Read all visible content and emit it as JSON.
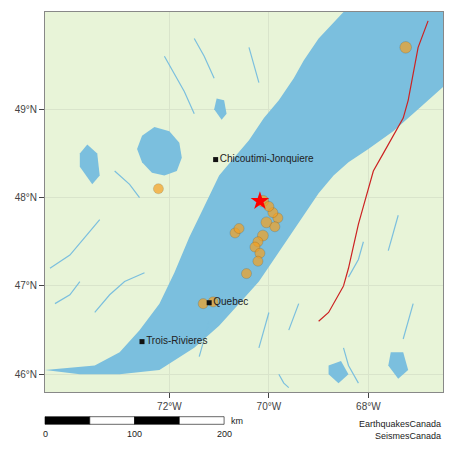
{
  "chart_data": {
    "type": "scatter",
    "xlim": [
      -74.5,
      -66.5
    ],
    "ylim": [
      45.8,
      50.1
    ],
    "xticks": [
      {
        "value": -72,
        "label": "72°W"
      },
      {
        "value": -70,
        "label": "70°W"
      },
      {
        "value": -68,
        "label": "68°W"
      }
    ],
    "yticks": [
      {
        "value": 46,
        "label": "46°N"
      },
      {
        "value": 47,
        "label": "47°N"
      },
      {
        "value": 48,
        "label": "48°N"
      },
      {
        "value": 49,
        "label": "49°N"
      }
    ],
    "grid": true,
    "background_color": "#e8f4d8",
    "series": [
      {
        "type": "area",
        "color": "#7bbfde",
        "paths": [
          [
            [
              -74.5,
              46.05
            ],
            [
              -73.8,
              46.0
            ],
            [
              -73.0,
              46.0
            ],
            [
              -72.2,
              46.05
            ],
            [
              -71.5,
              46.3
            ],
            [
              -71.0,
              46.55
            ],
            [
              -70.6,
              46.8
            ],
            [
              -70.2,
              47.05
            ],
            [
              -69.9,
              47.3
            ],
            [
              -69.6,
              47.55
            ],
            [
              -69.3,
              47.8
            ],
            [
              -69.0,
              48.05
            ],
            [
              -68.7,
              48.25
            ],
            [
              -68.4,
              48.4
            ],
            [
              -68.0,
              48.55
            ],
            [
              -67.5,
              48.75
            ],
            [
              -67.0,
              49.0
            ],
            [
              -66.5,
              49.25
            ],
            [
              -66.5,
              50.1
            ],
            [
              -67.0,
              50.1
            ],
            [
              -67.5,
              50.1
            ],
            [
              -68.0,
              50.1
            ],
            [
              -68.5,
              50.1
            ],
            [
              -69.0,
              49.8
            ],
            [
              -69.3,
              49.55
            ],
            [
              -69.5,
              49.35
            ],
            [
              -69.8,
              49.1
            ],
            [
              -70.1,
              48.9
            ],
            [
              -70.4,
              48.65
            ],
            [
              -70.7,
              48.45
            ],
            [
              -71.0,
              48.25
            ],
            [
              -71.3,
              47.9
            ],
            [
              -71.6,
              47.55
            ],
            [
              -71.9,
              47.15
            ],
            [
              -72.2,
              46.8
            ],
            [
              -72.6,
              46.5
            ],
            [
              -73.0,
              46.25
            ],
            [
              -73.5,
              46.1
            ],
            [
              -74.5,
              46.05
            ]
          ],
          [
            [
              -72.55,
              48.4
            ],
            [
              -72.35,
              48.28
            ],
            [
              -72.1,
              48.25
            ],
            [
              -71.85,
              48.3
            ],
            [
              -71.75,
              48.45
            ],
            [
              -71.8,
              48.62
            ],
            [
              -72.0,
              48.75
            ],
            [
              -72.3,
              48.8
            ],
            [
              -72.55,
              48.7
            ],
            [
              -72.65,
              48.55
            ],
            [
              -72.55,
              48.4
            ]
          ],
          [
            [
              -73.8,
              48.35
            ],
            [
              -73.55,
              48.15
            ],
            [
              -73.4,
              48.25
            ],
            [
              -73.45,
              48.5
            ],
            [
              -73.65,
              48.6
            ],
            [
              -73.8,
              48.5
            ]
          ],
          [
            [
              -71.1,
              49.0
            ],
            [
              -70.95,
              48.88
            ],
            [
              -70.85,
              48.95
            ],
            [
              -70.9,
              49.1
            ],
            [
              -71.05,
              49.12
            ],
            [
              -71.1,
              49.0
            ]
          ],
          [
            [
              -68.8,
              46.0
            ],
            [
              -68.6,
              45.9
            ],
            [
              -68.4,
              46.0
            ],
            [
              -68.55,
              46.15
            ],
            [
              -68.8,
              46.1
            ]
          ],
          [
            [
              -67.6,
              46.1
            ],
            [
              -67.4,
              45.95
            ],
            [
              -67.2,
              46.05
            ],
            [
              -67.3,
              46.25
            ],
            [
              -67.55,
              46.25
            ]
          ]
        ]
      },
      {
        "type": "line",
        "color": "#7bbfde",
        "paths": [
          [
            [
              -74.4,
              47.2
            ],
            [
              -74.0,
              47.35
            ],
            [
              -73.7,
              47.55
            ],
            [
              -73.4,
              47.75
            ]
          ],
          [
            [
              -74.3,
              46.8
            ],
            [
              -74.0,
              46.9
            ],
            [
              -73.8,
              47.05
            ]
          ],
          [
            [
              -73.5,
              46.7
            ],
            [
              -73.2,
              46.9
            ],
            [
              -72.9,
              47.05
            ],
            [
              -72.5,
              47.15
            ]
          ],
          [
            [
              -73.1,
              48.3
            ],
            [
              -72.8,
              48.15
            ],
            [
              -72.6,
              48.0
            ]
          ],
          [
            [
              -72.1,
              49.6
            ],
            [
              -71.9,
              49.4
            ],
            [
              -71.7,
              49.2
            ],
            [
              -71.5,
              48.95
            ]
          ],
          [
            [
              -71.5,
              49.8
            ],
            [
              -71.3,
              49.6
            ],
            [
              -71.1,
              49.35
            ]
          ],
          [
            [
              -70.4,
              49.7
            ],
            [
              -70.3,
              49.5
            ],
            [
              -70.2,
              49.3
            ]
          ],
          [
            [
              -69.6,
              46.5
            ],
            [
              -69.5,
              46.65
            ],
            [
              -69.4,
              46.8
            ]
          ],
          [
            [
              -70.2,
              46.3
            ],
            [
              -70.1,
              46.5
            ],
            [
              -70.0,
              46.7
            ]
          ],
          [
            [
              -71.4,
              46.2
            ],
            [
              -71.3,
              46.4
            ],
            [
              -71.2,
              46.6
            ]
          ],
          [
            [
              -68.1,
              47.5
            ],
            [
              -68.2,
              47.3
            ],
            [
              -68.4,
              47.1
            ]
          ],
          [
            [
              -67.4,
              47.8
            ],
            [
              -67.5,
              47.6
            ],
            [
              -67.6,
              47.4
            ]
          ],
          [
            [
              -67.1,
              46.8
            ],
            [
              -67.2,
              46.6
            ],
            [
              -67.3,
              46.4
            ]
          ],
          [
            [
              -68.5,
              46.3
            ],
            [
              -68.4,
              46.1
            ],
            [
              -68.2,
              45.9
            ]
          ],
          [
            [
              -69.8,
              46.0
            ],
            [
              -69.7,
              45.9
            ],
            [
              -69.6,
              45.85
            ]
          ]
        ]
      },
      {
        "type": "line",
        "color": "#cc2222",
        "paths": [
          [
            [
              -68.5,
              47.0
            ],
            [
              -68.4,
              47.2
            ],
            [
              -68.3,
              47.45
            ],
            [
              -68.2,
              47.7
            ],
            [
              -68.1,
              47.9
            ],
            [
              -68.0,
              48.1
            ],
            [
              -67.9,
              48.3
            ],
            [
              -67.7,
              48.5
            ],
            [
              -67.5,
              48.7
            ],
            [
              -67.3,
              48.9
            ],
            [
              -67.2,
              49.1
            ],
            [
              -67.1,
              49.4
            ],
            [
              -67.0,
              49.7
            ],
            [
              -66.8,
              50.0
            ]
          ],
          [
            [
              -68.5,
              47.0
            ],
            [
              -68.6,
              46.9
            ],
            [
              -68.7,
              46.8
            ],
            [
              -68.8,
              46.7
            ],
            [
              -69.0,
              46.6
            ]
          ]
        ]
      },
      {
        "type": "scatter",
        "marker": "circle",
        "color": "#f5a020",
        "x": [
          -70.12,
          -69.82,
          -69.92,
          -70.05,
          -69.88,
          -70.12,
          -70.22,
          -70.28,
          -70.18,
          -70.22,
          -70.45,
          -71.12,
          -71.32,
          -70.68,
          -70.6,
          -70.0,
          -72.22,
          -67.25
        ],
        "y": [
          47.96,
          47.77,
          47.83,
          47.72,
          47.67,
          47.57,
          47.5,
          47.44,
          47.37,
          47.28,
          47.14,
          46.82,
          46.8,
          47.6,
          47.65,
          47.9,
          48.1,
          49.7
        ],
        "sizes": [
          80,
          60,
          60,
          70,
          60,
          70,
          60,
          60,
          60,
          60,
          60,
          60,
          60,
          60,
          60,
          60,
          60,
          80
        ]
      },
      {
        "type": "scatter",
        "marker": "star",
        "color": "red",
        "x": [
          -70.18
        ],
        "y": [
          47.96
        ]
      },
      {
        "type": "scatter",
        "marker": "square",
        "color": "#111111",
        "x": [
          -71.07,
          -71.2,
          -72.55
        ],
        "y": [
          48.43,
          46.81,
          46.37
        ],
        "labels": [
          "Chicoutimi-Jonquiere",
          "Quebec",
          "Trois-Rivieres"
        ]
      }
    ],
    "scale_bar": {
      "ticks": [
        0,
        100,
        200
      ],
      "unit": "km"
    },
    "annotations": [
      "EarthquakesCanada\nSeismesCanada"
    ]
  }
}
